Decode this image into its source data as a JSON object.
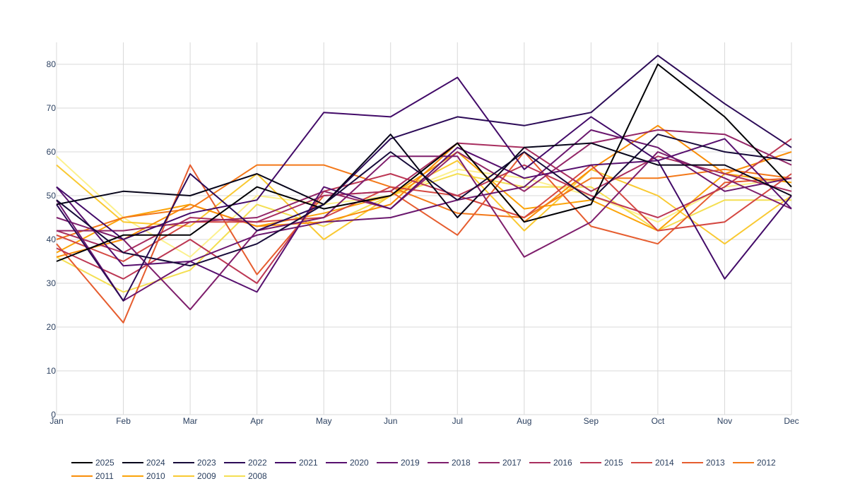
{
  "chart_data": {
    "type": "line",
    "title": "",
    "xlabel": "",
    "ylabel": "",
    "categories": [
      "Jan",
      "Feb",
      "Mar",
      "Apr",
      "May",
      "Jun",
      "Jul",
      "Aug",
      "Sep",
      "Oct",
      "Nov",
      "Dec"
    ],
    "ylim": [
      0,
      85
    ],
    "yticks": [
      0,
      10,
      20,
      30,
      40,
      50,
      60,
      70,
      80
    ],
    "grid": true,
    "legend": "bottom",
    "series": [
      {
        "name": "2025",
        "color": "#000004",
        "values": [
          35,
          41,
          41,
          52,
          47,
          50,
          62,
          44,
          48,
          80,
          68,
          52
        ]
      },
      {
        "name": "2024",
        "color": "#07051a",
        "values": [
          48,
          51,
          50,
          55,
          48,
          64,
          45,
          61,
          62,
          57,
          57,
          50
        ]
      },
      {
        "name": "2023",
        "color": "#170b3a",
        "values": [
          49,
          37,
          34,
          39,
          48,
          60,
          49,
          60,
          49,
          64,
          60,
          58
        ]
      },
      {
        "name": "2022",
        "color": "#2c0b57",
        "values": [
          48,
          26,
          55,
          42,
          48,
          63,
          68,
          66,
          69,
          82,
          71,
          61
        ]
      },
      {
        "name": "2021",
        "color": "#420a68",
        "values": [
          52,
          40,
          46,
          49,
          69,
          68,
          77,
          56,
          68,
          58,
          31,
          50
        ]
      },
      {
        "name": "2020",
        "color": "#57106e",
        "values": [
          52,
          34,
          35,
          28,
          52,
          47,
          61,
          54,
          57,
          58,
          63,
          47
        ]
      },
      {
        "name": "2019",
        "color": "#6a176e",
        "values": [
          49,
          26,
          35,
          41,
          44,
          45,
          49,
          52,
          65,
          61,
          51,
          54
        ]
      },
      {
        "name": "2018",
        "color": "#7e1e6c",
        "values": [
          45,
          40,
          24,
          42,
          45,
          59,
          59,
          36,
          44,
          60,
          54,
          47
        ]
      },
      {
        "name": "2017",
        "color": "#932667",
        "values": [
          42,
          42,
          44,
          45,
          51,
          47,
          60,
          51,
          62,
          65,
          64,
          57
        ]
      },
      {
        "name": "2016",
        "color": "#a82e5f",
        "values": [
          42,
          37,
          45,
          44,
          50,
          51,
          62,
          61,
          51,
          59,
          55,
          51
        ]
      },
      {
        "name": "2015",
        "color": "#bc3754",
        "values": [
          38,
          31,
          40,
          30,
          51,
          55,
          50,
          57,
          50,
          45,
          52,
          63
        ]
      },
      {
        "name": "2014",
        "color": "#d44842",
        "values": [
          41,
          35,
          44,
          44,
          45,
          52,
          50,
          45,
          57,
          42,
          44,
          55
        ]
      },
      {
        "name": "2013",
        "color": "#e65d2f",
        "values": [
          39,
          21,
          57,
          32,
          50,
          51,
          41,
          60,
          43,
          39,
          53,
          54
        ]
      },
      {
        "name": "2012",
        "color": "#f37819",
        "values": [
          40,
          45,
          47,
          57,
          57,
          52,
          46,
          45,
          54,
          54,
          56,
          54
        ]
      },
      {
        "name": "2011",
        "color": "#f98e09",
        "values": [
          36,
          40,
          48,
          43,
          44,
          48,
          62,
          44,
          56,
          66,
          55,
          60
        ]
      },
      {
        "name": "2010",
        "color": "#fba40a",
        "values": [
          37,
          45,
          48,
          43,
          46,
          50,
          60,
          47,
          49,
          42,
          55,
          53
        ]
      },
      {
        "name": "2009",
        "color": "#f9c932",
        "values": [
          57,
          44,
          43,
          55,
          40,
          50,
          58,
          42,
          56,
          50,
          39,
          50
        ]
      },
      {
        "name": "2008",
        "color": "#f4df53",
        "values": [
          36,
          28,
          33,
          48,
          43,
          50,
          55,
          52,
          52,
          42,
          49,
          49
        ]
      },
      {
        "name": "",
        "color": "#fcf18d",
        "values": [
          59,
          45,
          36,
          50,
          48,
          50,
          56,
          54,
          50,
          44,
          52,
          54
        ]
      }
    ]
  }
}
